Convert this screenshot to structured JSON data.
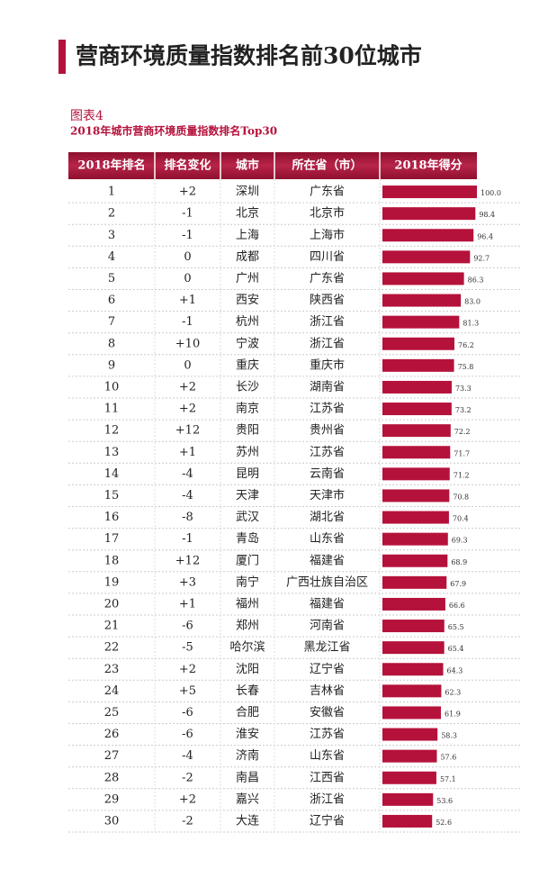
{
  "header": {
    "title": "营商环境质量指数排名前30位城市"
  },
  "figure": {
    "label": "图表4",
    "subtitle": "2018年城市营商环境质量指数排名Top30"
  },
  "table": {
    "columns": [
      "2018年排名",
      "排名变化",
      "城市",
      "所在省（市）",
      "2018年得分"
    ],
    "rows": [
      [
        "1",
        "+2",
        "深圳",
        "广东省"
      ],
      [
        "2",
        "-1",
        "北京",
        "北京市"
      ],
      [
        "3",
        "-1",
        "上海",
        "上海市"
      ],
      [
        "4",
        "0",
        "成都",
        "四川省"
      ],
      [
        "5",
        "0",
        "广州",
        "广东省"
      ],
      [
        "6",
        "+1",
        "西安",
        "陕西省"
      ],
      [
        "7",
        "-1",
        "杭州",
        "浙江省"
      ],
      [
        "8",
        "+10",
        "宁波",
        "浙江省"
      ],
      [
        "9",
        "0",
        "重庆",
        "重庆市"
      ],
      [
        "10",
        "+2",
        "长沙",
        "湖南省"
      ],
      [
        "11",
        "+2",
        "南京",
        "江苏省"
      ],
      [
        "12",
        "+12",
        "贵阳",
        "贵州省"
      ],
      [
        "13",
        "+1",
        "苏州",
        "江苏省"
      ],
      [
        "14",
        "-4",
        "昆明",
        "云南省"
      ],
      [
        "15",
        "-4",
        "天津",
        "天津市"
      ],
      [
        "16",
        "-8",
        "武汉",
        "湖北省"
      ],
      [
        "17",
        "-1",
        "青岛",
        "山东省"
      ],
      [
        "18",
        "+12",
        "厦门",
        "福建省"
      ],
      [
        "19",
        "+3",
        "南宁",
        "广西壮族自治区"
      ],
      [
        "20",
        "+1",
        "福州",
        "福建省"
      ],
      [
        "21",
        "-6",
        "郑州",
        "河南省"
      ],
      [
        "22",
        "-5",
        "哈尔滨",
        "黑龙江省"
      ],
      [
        "23",
        "+2",
        "沈阳",
        "辽宁省"
      ],
      [
        "24",
        "+5",
        "长春",
        "吉林省"
      ],
      [
        "25",
        "-6",
        "合肥",
        "安徽省"
      ],
      [
        "26",
        "-6",
        "淮安",
        "江苏省"
      ],
      [
        "27",
        "-4",
        "济南",
        "山东省"
      ],
      [
        "28",
        "-2",
        "南昌",
        "江西省"
      ],
      [
        "29",
        "+2",
        "嘉兴",
        "浙江省"
      ],
      [
        "30",
        "-2",
        "大连",
        "辽宁省"
      ]
    ],
    "scores": [
      100.0,
      98.4,
      96.4,
      92.7,
      86.3,
      83.0,
      81.3,
      76.2,
      75.8,
      73.3,
      73.2,
      72.2,
      71.7,
      71.2,
      70.8,
      70.4,
      69.3,
      68.9,
      67.9,
      66.6,
      65.5,
      65.4,
      64.3,
      62.3,
      61.9,
      58.3,
      57.6,
      57.1,
      53.6,
      52.6
    ],
    "score_labels": [
      "100.0",
      "98.4",
      "96.4",
      "92.7",
      "86.3",
      "83.0",
      "81.3",
      "76.2",
      "75.8",
      "73.3",
      "73.2",
      "72.2",
      "71.7",
      "71.2",
      "70.8",
      "70.4",
      "69.3",
      "68.9",
      "67.9",
      "66.6",
      "65.5",
      "65.4",
      "64.3",
      "62.3",
      "61.9",
      "58.3",
      "57.6",
      "57.1",
      "53.6",
      "52.6"
    ],
    "bar_color": "#b5123b"
  }
}
